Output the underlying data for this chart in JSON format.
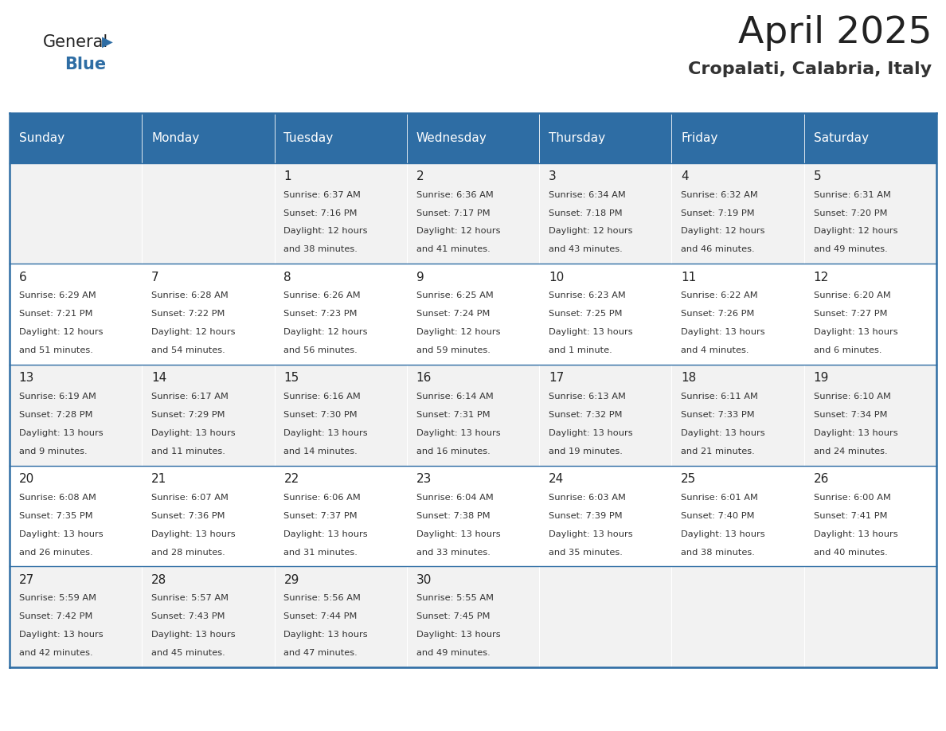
{
  "title": "April 2025",
  "subtitle": "Cropalati, Calabria, Italy",
  "header_bg_color": "#2E6DA4",
  "header_text_color": "#FFFFFF",
  "cell_bg_even": "#F2F2F2",
  "cell_bg_white": "#FFFFFF",
  "day_headers": [
    "Sunday",
    "Monday",
    "Tuesday",
    "Wednesday",
    "Thursday",
    "Friday",
    "Saturday"
  ],
  "title_color": "#222222",
  "subtitle_color": "#333333",
  "border_color": "#2E6DA4",
  "cell_text_color": "#333333",
  "day_number_color": "#222222",
  "general_color": "#2E6DA4",
  "calendar_data": [
    [
      {
        "day": null,
        "info": ""
      },
      {
        "day": null,
        "info": ""
      },
      {
        "day": 1,
        "info": "Sunrise: 6:37 AM\nSunset: 7:16 PM\nDaylight: 12 hours\nand 38 minutes."
      },
      {
        "day": 2,
        "info": "Sunrise: 6:36 AM\nSunset: 7:17 PM\nDaylight: 12 hours\nand 41 minutes."
      },
      {
        "day": 3,
        "info": "Sunrise: 6:34 AM\nSunset: 7:18 PM\nDaylight: 12 hours\nand 43 minutes."
      },
      {
        "day": 4,
        "info": "Sunrise: 6:32 AM\nSunset: 7:19 PM\nDaylight: 12 hours\nand 46 minutes."
      },
      {
        "day": 5,
        "info": "Sunrise: 6:31 AM\nSunset: 7:20 PM\nDaylight: 12 hours\nand 49 minutes."
      }
    ],
    [
      {
        "day": 6,
        "info": "Sunrise: 6:29 AM\nSunset: 7:21 PM\nDaylight: 12 hours\nand 51 minutes."
      },
      {
        "day": 7,
        "info": "Sunrise: 6:28 AM\nSunset: 7:22 PM\nDaylight: 12 hours\nand 54 minutes."
      },
      {
        "day": 8,
        "info": "Sunrise: 6:26 AM\nSunset: 7:23 PM\nDaylight: 12 hours\nand 56 minutes."
      },
      {
        "day": 9,
        "info": "Sunrise: 6:25 AM\nSunset: 7:24 PM\nDaylight: 12 hours\nand 59 minutes."
      },
      {
        "day": 10,
        "info": "Sunrise: 6:23 AM\nSunset: 7:25 PM\nDaylight: 13 hours\nand 1 minute."
      },
      {
        "day": 11,
        "info": "Sunrise: 6:22 AM\nSunset: 7:26 PM\nDaylight: 13 hours\nand 4 minutes."
      },
      {
        "day": 12,
        "info": "Sunrise: 6:20 AM\nSunset: 7:27 PM\nDaylight: 13 hours\nand 6 minutes."
      }
    ],
    [
      {
        "day": 13,
        "info": "Sunrise: 6:19 AM\nSunset: 7:28 PM\nDaylight: 13 hours\nand 9 minutes."
      },
      {
        "day": 14,
        "info": "Sunrise: 6:17 AM\nSunset: 7:29 PM\nDaylight: 13 hours\nand 11 minutes."
      },
      {
        "day": 15,
        "info": "Sunrise: 6:16 AM\nSunset: 7:30 PM\nDaylight: 13 hours\nand 14 minutes."
      },
      {
        "day": 16,
        "info": "Sunrise: 6:14 AM\nSunset: 7:31 PM\nDaylight: 13 hours\nand 16 minutes."
      },
      {
        "day": 17,
        "info": "Sunrise: 6:13 AM\nSunset: 7:32 PM\nDaylight: 13 hours\nand 19 minutes."
      },
      {
        "day": 18,
        "info": "Sunrise: 6:11 AM\nSunset: 7:33 PM\nDaylight: 13 hours\nand 21 minutes."
      },
      {
        "day": 19,
        "info": "Sunrise: 6:10 AM\nSunset: 7:34 PM\nDaylight: 13 hours\nand 24 minutes."
      }
    ],
    [
      {
        "day": 20,
        "info": "Sunrise: 6:08 AM\nSunset: 7:35 PM\nDaylight: 13 hours\nand 26 minutes."
      },
      {
        "day": 21,
        "info": "Sunrise: 6:07 AM\nSunset: 7:36 PM\nDaylight: 13 hours\nand 28 minutes."
      },
      {
        "day": 22,
        "info": "Sunrise: 6:06 AM\nSunset: 7:37 PM\nDaylight: 13 hours\nand 31 minutes."
      },
      {
        "day": 23,
        "info": "Sunrise: 6:04 AM\nSunset: 7:38 PM\nDaylight: 13 hours\nand 33 minutes."
      },
      {
        "day": 24,
        "info": "Sunrise: 6:03 AM\nSunset: 7:39 PM\nDaylight: 13 hours\nand 35 minutes."
      },
      {
        "day": 25,
        "info": "Sunrise: 6:01 AM\nSunset: 7:40 PM\nDaylight: 13 hours\nand 38 minutes."
      },
      {
        "day": 26,
        "info": "Sunrise: 6:00 AM\nSunset: 7:41 PM\nDaylight: 13 hours\nand 40 minutes."
      }
    ],
    [
      {
        "day": 27,
        "info": "Sunrise: 5:59 AM\nSunset: 7:42 PM\nDaylight: 13 hours\nand 42 minutes."
      },
      {
        "day": 28,
        "info": "Sunrise: 5:57 AM\nSunset: 7:43 PM\nDaylight: 13 hours\nand 45 minutes."
      },
      {
        "day": 29,
        "info": "Sunrise: 5:56 AM\nSunset: 7:44 PM\nDaylight: 13 hours\nand 47 minutes."
      },
      {
        "day": 30,
        "info": "Sunrise: 5:55 AM\nSunset: 7:45 PM\nDaylight: 13 hours\nand 49 minutes."
      },
      {
        "day": null,
        "info": ""
      },
      {
        "day": null,
        "info": ""
      },
      {
        "day": null,
        "info": ""
      }
    ]
  ]
}
